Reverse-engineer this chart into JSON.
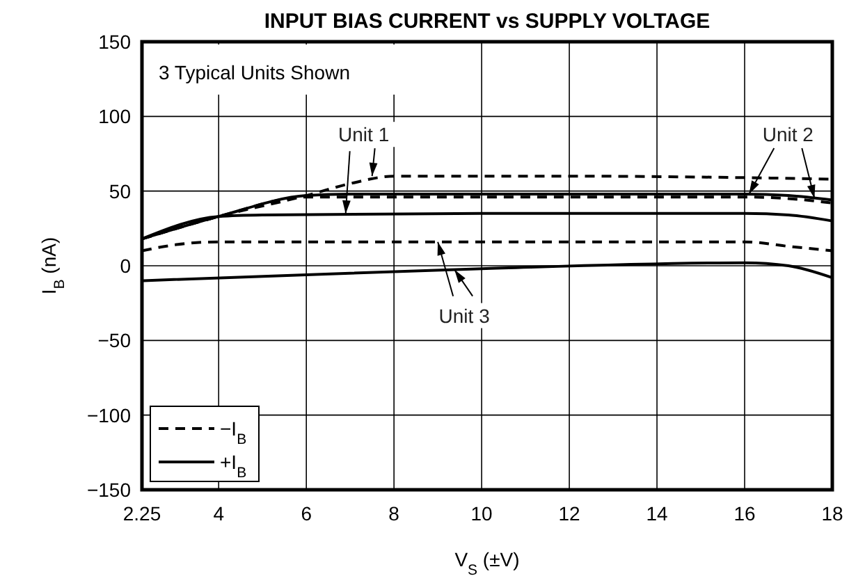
{
  "chart_data": {
    "type": "line",
    "title": "INPUT BIAS CURRENT vs SUPPLY VOLTAGE",
    "xlabel": "V$_{S}$ (±V)",
    "ylabel": "I$_{B}$ (nA)",
    "xlim": [
      2.25,
      18
    ],
    "xticks": [
      2.25,
      4,
      6,
      8,
      10,
      12,
      14,
      16,
      18
    ],
    "ylim": [
      -150,
      150
    ],
    "yticks": [
      {
        "value": -150,
        "label": "−150"
      },
      {
        "value": -100,
        "label": "−100"
      },
      {
        "value": -50,
        "label": "−50"
      },
      0,
      50,
      100,
      150
    ],
    "grid": true,
    "legend": "bottom left",
    "marker": "none",
    "annotations": [
      "3 Typical Units Shown",
      {
        "text": "Unit 1",
        "x": 7.5,
        "y": 60
      },
      {
        "text": "Unit 2",
        "x": 16.1,
        "y": 48
      },
      {
        "text": "Unit 3",
        "x": 9,
        "y": 16
      }
    ],
    "series": [
      {
        "name": "−I$_{B}$",
        "color": "#000000",
        "line_style": "dashed",
        "x": [
          2.25,
          4,
          6,
          7,
          8,
          12,
          16,
          18
        ],
        "values": [
          18,
          33,
          47,
          55,
          60,
          60,
          59,
          58
        ]
      },
      {
        "name": "+I$_{B}$",
        "color": "#000000",
        "line_style": "solid",
        "x": [
          2.25,
          4,
          5,
          10,
          16,
          17,
          18
        ],
        "values": [
          18,
          33,
          34,
          35,
          35,
          34,
          30
        ]
      },
      {
        "color": "#000000",
        "line_style": "solid",
        "x": [
          2.25,
          4,
          6,
          7,
          12,
          16,
          17,
          18
        ],
        "values": [
          18,
          33,
          47,
          48,
          48,
          48,
          47,
          44
        ]
      },
      {
        "color": "#000000",
        "line_style": "dashed",
        "x": [
          2.25,
          4,
          6,
          8,
          16,
          17,
          18
        ],
        "values": [
          18,
          33,
          46,
          46,
          46,
          45,
          42
        ]
      },
      {
        "color": "#000000",
        "line_style": "dashed",
        "x": [
          2.25,
          3,
          4,
          16,
          17,
          18
        ],
        "values": [
          10,
          14,
          16,
          16,
          13,
          10
        ]
      },
      {
        "color": "#000000",
        "line_style": "solid",
        "x": [
          2.25,
          6,
          10,
          16,
          17,
          18
        ],
        "values": [
          -10,
          -6,
          -2,
          2,
          0,
          -8
        ]
      }
    ]
  }
}
